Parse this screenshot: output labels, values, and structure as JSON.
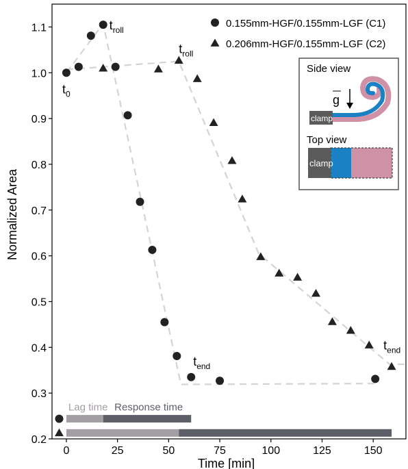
{
  "chart_data": {
    "type": "scatter",
    "xlabel": "Time [min]",
    "ylabel": "Normalized Area",
    "xlim": [
      -7,
      166
    ],
    "ylim": [
      0.2,
      1.15
    ],
    "xticks": [
      0,
      25,
      50,
      75,
      100,
      125,
      150
    ],
    "yticks": [
      0.2,
      0.3,
      0.4,
      0.5,
      0.6,
      0.7,
      0.8,
      0.9,
      1.0,
      1.1
    ],
    "xtick_labels": [
      "0",
      "25",
      "50",
      "75",
      "100",
      "125",
      "150"
    ],
    "ytick_labels": [
      "0.2",
      "0.3",
      "0.4",
      "0.5",
      "0.6",
      "0.7",
      "0.8",
      "0.9",
      "1.0",
      "1.1"
    ],
    "grid": false,
    "legend_position": "top-right",
    "series": [
      {
        "name": "0.155mm-HGF/0.155mm-LGF (C1)",
        "marker": "circle",
        "color": "#222222",
        "x": [
          0,
          6,
          12,
          18,
          24,
          30,
          36,
          42,
          48,
          54,
          61,
          75,
          151
        ],
        "y": [
          1.0,
          1.013,
          1.081,
          1.105,
          1.013,
          0.907,
          0.718,
          0.613,
          0.455,
          0.381,
          0.335,
          0.327,
          0.331
        ]
      },
      {
        "name": "0.206mm-HGF/0.155mm-LGF (C2)",
        "marker": "triangle",
        "color": "#222222",
        "x": [
          18,
          45,
          55,
          64,
          72,
          81,
          86,
          95,
          104,
          113,
          122,
          130,
          139,
          148,
          159
        ],
        "y": [
          1.01,
          1.008,
          1.027,
          0.987,
          0.891,
          0.808,
          0.724,
          0.598,
          0.562,
          0.553,
          0.518,
          0.456,
          0.437,
          0.405,
          0.358
        ]
      }
    ],
    "fit_lines": [
      {
        "series": "C1",
        "x": [
          0,
          18,
          56,
          153
        ],
        "y": [
          1.0,
          1.107,
          0.319,
          0.321
        ]
      },
      {
        "series": "C2",
        "x": [
          0,
          55,
          94,
          158,
          166
        ],
        "y": [
          1.007,
          1.025,
          0.605,
          0.363,
          0.363
        ]
      }
    ],
    "annotations": [
      {
        "label": "t",
        "sub": "0",
        "x": -2,
        "y": 0.955
      },
      {
        "label": "t",
        "sub": "roll",
        "x": 21,
        "y": 1.095
      },
      {
        "label": "t",
        "sub": "roll",
        "x": 55,
        "y": 1.043
      },
      {
        "label": "t",
        "sub": "end",
        "x": 62,
        "y": 0.36
      },
      {
        "label": "t",
        "sub": "end",
        "x": 155,
        "y": 0.395
      }
    ],
    "timeline": {
      "lag_label": "Lag time",
      "response_label": "Response time",
      "lag_color": "#a39ea4",
      "response_color": "#5d5f68",
      "bars": [
        {
          "series": "C1",
          "marker": "circle",
          "y": 0.244,
          "start": 0,
          "split": 18,
          "end": 61
        },
        {
          "series": "C2",
          "marker": "triangle",
          "y": 0.213,
          "start": 0,
          "split": 55,
          "end": 159
        }
      ]
    },
    "inset": {
      "side_view_label": "Side view",
      "top_view_label": "Top view",
      "clamp_label": "clamp",
      "gravity_label": "g",
      "blue_color": "#1a82c4",
      "pink_color": "#cf91a6",
      "clamp_color": "#5b5b5b"
    },
    "fit_line_color": "#d4d4d4"
  }
}
